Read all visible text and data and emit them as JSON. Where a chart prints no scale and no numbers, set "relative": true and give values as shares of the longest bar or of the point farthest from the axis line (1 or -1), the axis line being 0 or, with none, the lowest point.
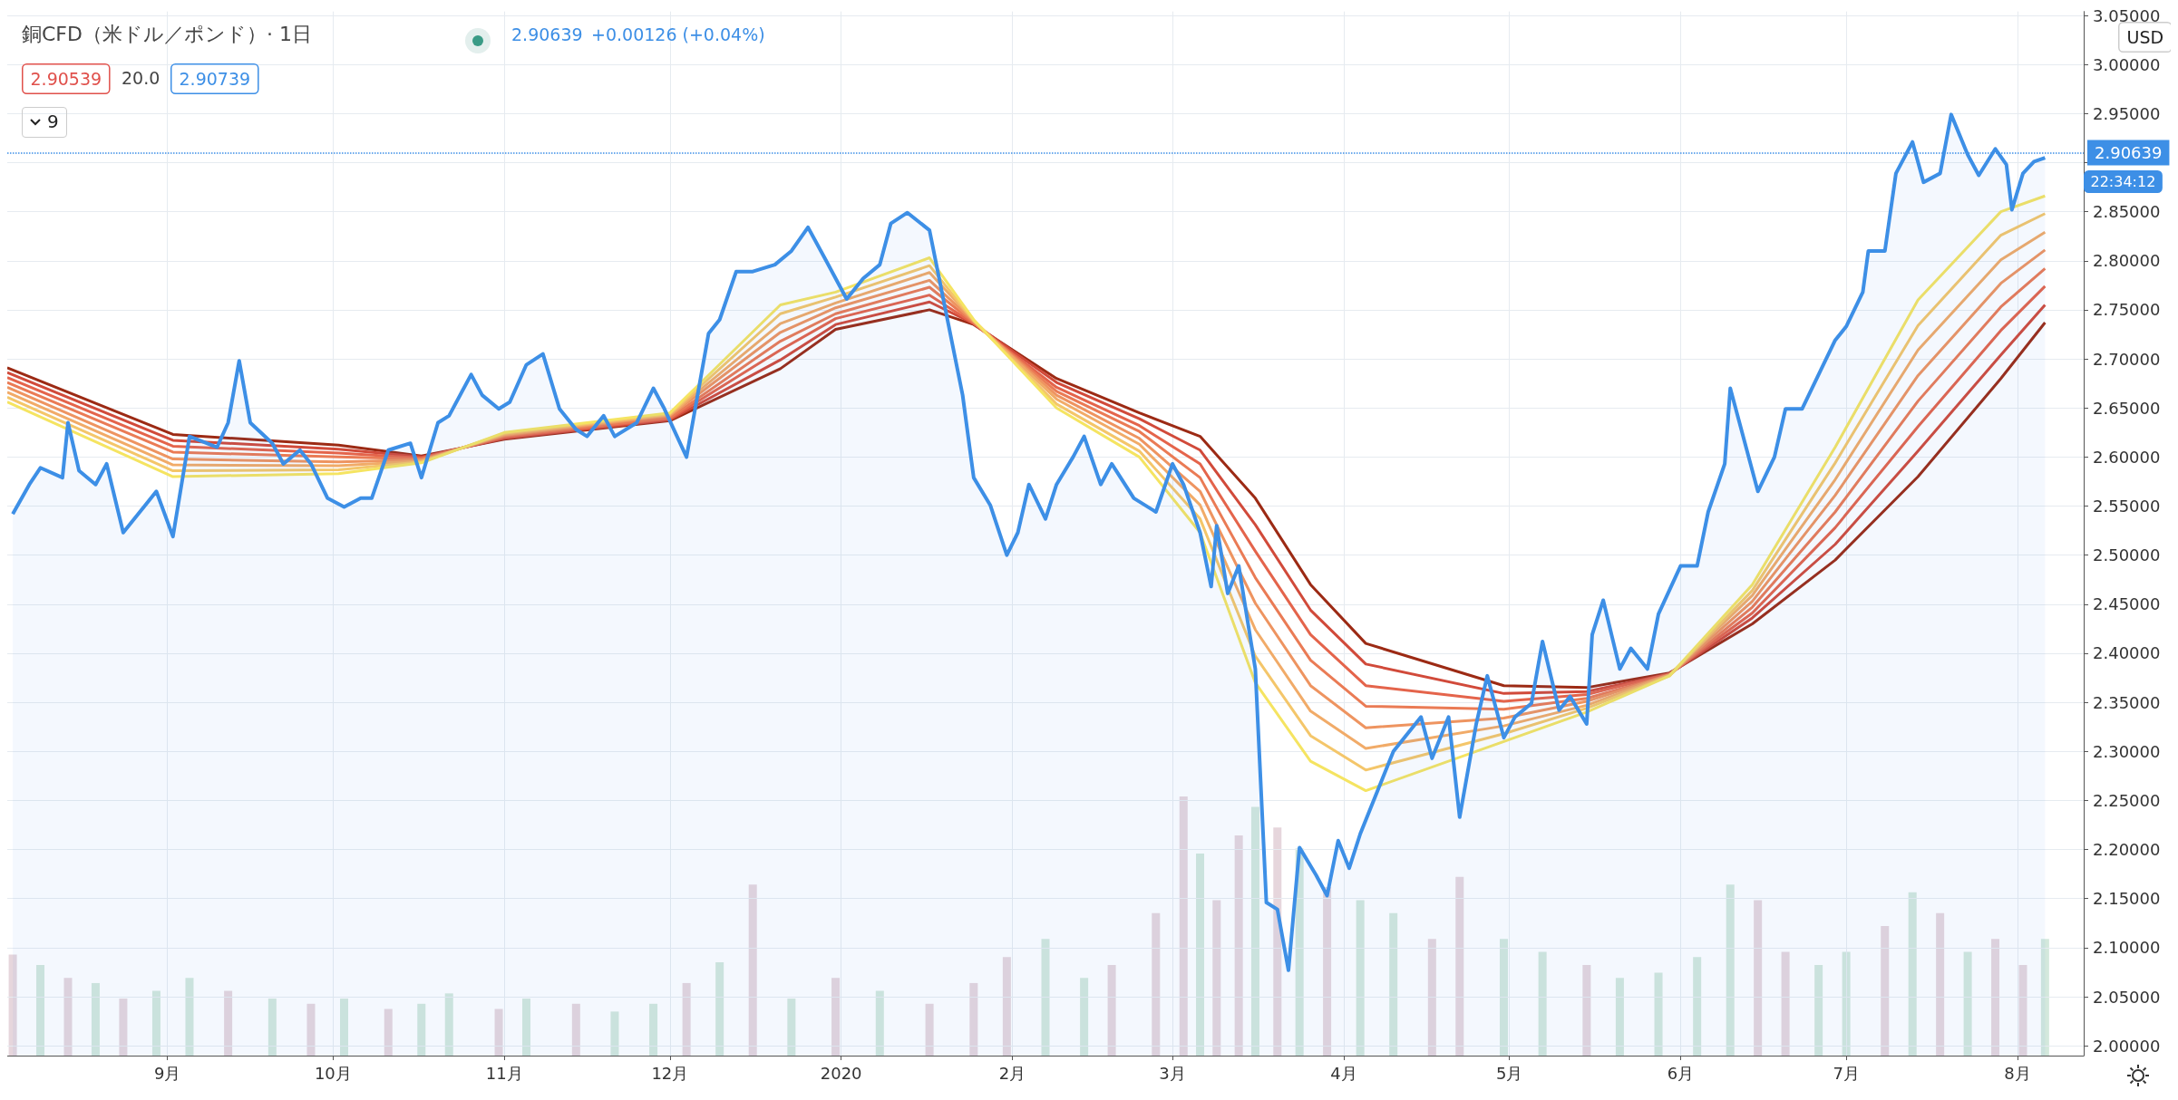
{
  "chart_data": [
    {
      "type": "line",
      "title": "銅CFD（米ドル／ポンド）· 1日",
      "annotations": [
        "2.90639",
        "+0.00126 (+0.04%)",
        "2.90539",
        "20.0",
        "2.90739",
        "9",
        "USD",
        "22:34:12"
      ],
      "xlim": [
        "2019-08-03",
        "2020-08-13"
      ],
      "xticks": [
        {
          "value": "2019-09-01",
          "label": "9月"
        },
        {
          "value": "2019-10-01",
          "label": "10月"
        },
        {
          "value": "2019-11-01",
          "label": "11月"
        },
        {
          "value": "2019-12-01",
          "label": "12月"
        },
        {
          "value": "2020-01-01",
          "label": "2020"
        },
        {
          "value": "2020-02-01",
          "label": "2月"
        },
        {
          "value": "2020-03-01",
          "label": "3月"
        },
        {
          "value": "2020-04-01",
          "label": "4月"
        },
        {
          "value": "2020-05-01",
          "label": "5月"
        },
        {
          "value": "2020-06-01",
          "label": "6月"
        },
        {
          "value": "2020-07-01",
          "label": "7月"
        },
        {
          "value": "2020-08-01",
          "label": "8月"
        }
      ],
      "ylim": [
        1.99,
        3.054
      ],
      "yticks": [
        {
          "value": 2.0,
          "label": "2.00000"
        },
        {
          "value": 2.05,
          "label": "2.05000"
        },
        {
          "value": 2.1,
          "label": "2.10000"
        },
        {
          "value": 2.15,
          "label": "2.15000"
        },
        {
          "value": 2.2,
          "label": "2.20000"
        },
        {
          "value": 2.25,
          "label": "2.25000"
        },
        {
          "value": 2.3,
          "label": "2.30000"
        },
        {
          "value": 2.35,
          "label": "2.35000"
        },
        {
          "value": 2.4,
          "label": "2.40000"
        },
        {
          "value": 2.45,
          "label": "2.45000"
        },
        {
          "value": 2.5,
          "label": "2.50000"
        },
        {
          "value": 2.55,
          "label": "2.55000"
        },
        {
          "value": 2.6,
          "label": "2.60000"
        },
        {
          "value": 2.65,
          "label": "2.65000"
        },
        {
          "value": 2.7,
          "label": "2.70000"
        },
        {
          "value": 2.75,
          "label": "2.75000"
        },
        {
          "value": 2.8,
          "label": "2.80000"
        },
        {
          "value": 2.85,
          "label": "2.85000"
        },
        {
          "value": 2.9,
          "label": null
        },
        {
          "value": 2.95,
          "label": "2.95000"
        },
        {
          "value": 3.0,
          "label": "3.00000"
        },
        {
          "value": 3.05,
          "label": "3.05000"
        }
      ],
      "grid": true,
      "ref_lines": [
        {
          "axis": "y",
          "value": 2.90639,
          "label": "2.90639",
          "color": "#3d8fe6",
          "line_style": "dotted"
        }
      ],
      "x": [
        "2019-08-03",
        "2019-09-02",
        "2019-10-02",
        "2019-10-17",
        "2019-11-01",
        "2019-12-01",
        "2019-12-21",
        "2019-12-31",
        "2020-01-17",
        "2020-01-25",
        "2020-02-09",
        "2020-02-24",
        "2020-03-06",
        "2020-03-16",
        "2020-03-26",
        "2020-04-05",
        "2020-04-30",
        "2020-05-15",
        "2020-05-30",
        "2020-06-14",
        "2020-06-29",
        "2020-07-14",
        "2020-07-29",
        "2020-08-06"
      ],
      "series": [
        {
          "type": "area",
          "color": "#3d8fe6",
          "x": [
            "2019-08-04",
            "2019-08-07",
            "2019-08-09",
            "2019-08-13",
            "2019-08-14",
            "2019-08-16",
            "2019-08-19",
            "2019-08-21",
            "2019-08-24",
            "2019-08-28",
            "2019-08-30",
            "2019-09-02",
            "2019-09-05",
            "2019-09-10",
            "2019-09-12",
            "2019-09-14",
            "2019-09-16",
            "2019-09-20",
            "2019-09-22",
            "2019-09-25",
            "2019-09-27",
            "2019-09-30",
            "2019-10-03",
            "2019-10-06",
            "2019-10-08",
            "2019-10-11",
            "2019-10-15",
            "2019-10-17",
            "2019-10-20",
            "2019-10-22",
            "2019-10-26",
            "2019-10-28",
            "2019-10-31",
            "2019-11-02",
            "2019-11-05",
            "2019-11-08",
            "2019-11-11",
            "2019-11-14",
            "2019-11-16",
            "2019-11-19",
            "2019-11-21",
            "2019-11-25",
            "2019-11-28",
            "2019-11-30",
            "2019-12-04",
            "2019-12-08",
            "2019-12-10",
            "2019-12-13",
            "2019-12-16",
            "2019-12-20",
            "2019-12-23",
            "2019-12-26",
            "2019-12-29",
            "2019-12-31",
            "2020-01-02",
            "2020-01-05",
            "2020-01-08",
            "2020-01-10",
            "2020-01-13",
            "2020-01-17",
            "2020-01-20",
            "2020-01-23",
            "2020-01-25",
            "2020-01-28",
            "2020-01-31",
            "2020-02-02",
            "2020-02-04",
            "2020-02-07",
            "2020-02-09",
            "2020-02-12",
            "2020-02-14",
            "2020-02-17",
            "2020-02-19",
            "2020-02-23",
            "2020-02-27",
            "2020-03-01",
            "2020-03-03",
            "2020-03-06",
            "2020-03-08",
            "2020-03-09",
            "2020-03-11",
            "2020-03-13",
            "2020-03-16",
            "2020-03-18",
            "2020-03-20",
            "2020-03-22",
            "2020-03-24",
            "2020-03-27",
            "2020-03-29",
            "2020-03-31",
            "2020-04-02",
            "2020-04-04",
            "2020-04-07",
            "2020-04-10",
            "2020-04-12",
            "2020-04-15",
            "2020-04-17",
            "2020-04-20",
            "2020-04-22",
            "2020-04-25",
            "2020-04-27",
            "2020-04-30",
            "2020-05-02",
            "2020-05-05",
            "2020-05-07",
            "2020-05-10",
            "2020-05-12",
            "2020-05-15",
            "2020-05-16",
            "2020-05-18",
            "2020-05-21",
            "2020-05-23",
            "2020-05-26",
            "2020-05-28",
            "2020-06-01",
            "2020-06-04",
            "2020-06-06",
            "2020-06-09",
            "2020-06-10",
            "2020-06-13",
            "2020-06-15",
            "2020-06-18",
            "2020-06-20",
            "2020-06-23",
            "2020-06-26",
            "2020-06-29",
            "2020-07-01",
            "2020-07-04",
            "2020-07-05",
            "2020-07-08",
            "2020-07-10",
            "2020-07-13",
            "2020-07-15",
            "2020-07-18",
            "2020-07-20",
            "2020-07-23",
            "2020-07-25",
            "2020-07-28",
            "2020-07-30",
            "2020-07-31",
            "2020-08-02",
            "2020-08-04",
            "2020-08-06"
          ],
          "values": [
            2.542,
            2.572,
            2.589,
            2.579,
            2.635,
            2.586,
            2.572,
            2.593,
            2.523,
            2.551,
            2.565,
            2.519,
            2.621,
            2.61,
            2.635,
            2.698,
            2.635,
            2.614,
            2.593,
            2.607,
            2.593,
            2.558,
            2.549,
            2.558,
            2.558,
            2.607,
            2.614,
            2.579,
            2.635,
            2.642,
            2.684,
            2.663,
            2.649,
            2.656,
            2.694,
            2.705,
            2.649,
            2.628,
            2.621,
            2.642,
            2.621,
            2.635,
            2.67,
            2.649,
            2.6,
            2.726,
            2.74,
            2.789,
            2.789,
            2.796,
            2.81,
            2.834,
            2.803,
            2.782,
            2.761,
            2.782,
            2.796,
            2.838,
            2.849,
            2.831,
            2.747,
            2.663,
            2.579,
            2.551,
            2.5,
            2.523,
            2.572,
            2.537,
            2.572,
            2.6,
            2.621,
            2.572,
            2.593,
            2.558,
            2.544,
            2.593,
            2.572,
            2.523,
            2.468,
            2.53,
            2.461,
            2.489,
            2.384,
            2.146,
            2.139,
            2.077,
            2.202,
            2.174,
            2.153,
            2.209,
            2.181,
            2.216,
            2.258,
            2.3,
            2.314,
            2.335,
            2.293,
            2.335,
            2.233,
            2.328,
            2.377,
            2.314,
            2.335,
            2.349,
            2.412,
            2.342,
            2.356,
            2.328,
            2.419,
            2.454,
            2.384,
            2.405,
            2.384,
            2.44,
            2.489,
            2.489,
            2.544,
            2.593,
            2.67,
            2.607,
            2.565,
            2.6,
            2.649,
            2.649,
            2.684,
            2.719,
            2.733,
            2.768,
            2.81,
            2.81,
            2.889,
            2.921,
            2.88,
            2.889,
            2.949,
            2.908,
            2.887,
            2.914,
            2.898,
            2.852,
            2.889,
            2.901,
            2.905
          ]
        },
        {
          "color": "#f5e461",
          "values": [
            2.656,
            2.58,
            2.583,
            2.594,
            2.625,
            2.645,
            2.755,
            2.768,
            2.803,
            2.74,
            2.65,
            2.6,
            2.523,
            2.37,
            2.29,
            2.26,
            2.31,
            2.34,
            2.377,
            2.47,
            2.61,
            2.76,
            2.85,
            2.866
          ]
        },
        {
          "color": "#f4c66a",
          "values": [
            2.661,
            2.586,
            2.587,
            2.595,
            2.624,
            2.644,
            2.746,
            2.763,
            2.795,
            2.739,
            2.654,
            2.606,
            2.537,
            2.397,
            2.316,
            2.281,
            2.318,
            2.344,
            2.377,
            2.464,
            2.594,
            2.734,
            2.826,
            2.848
          ]
        },
        {
          "color": "#f1ab68",
          "values": [
            2.666,
            2.592,
            2.591,
            2.596,
            2.623,
            2.643,
            2.736,
            2.757,
            2.788,
            2.739,
            2.659,
            2.613,
            2.551,
            2.424,
            2.341,
            2.303,
            2.326,
            2.347,
            2.378,
            2.459,
            2.577,
            2.709,
            2.801,
            2.829
          ]
        },
        {
          "color": "#ee9460",
          "values": [
            2.671,
            2.598,
            2.595,
            2.597,
            2.622,
            2.642,
            2.727,
            2.752,
            2.78,
            2.738,
            2.663,
            2.619,
            2.565,
            2.451,
            2.367,
            2.324,
            2.334,
            2.351,
            2.378,
            2.453,
            2.561,
            2.683,
            2.777,
            2.811
          ]
        },
        {
          "color": "#ea7b55",
          "values": [
            2.676,
            2.605,
            2.6,
            2.598,
            2.621,
            2.64,
            2.718,
            2.746,
            2.773,
            2.737,
            2.667,
            2.626,
            2.579,
            2.477,
            2.393,
            2.346,
            2.343,
            2.354,
            2.378,
            2.447,
            2.544,
            2.657,
            2.753,
            2.792
          ]
        },
        {
          "color": "#e4644b",
          "values": [
            2.681,
            2.611,
            2.604,
            2.599,
            2.62,
            2.639,
            2.709,
            2.741,
            2.765,
            2.736,
            2.671,
            2.632,
            2.593,
            2.504,
            2.419,
            2.367,
            2.351,
            2.358,
            2.379,
            2.441,
            2.528,
            2.631,
            2.729,
            2.774
          ]
        },
        {
          "color": "#d14a3a",
          "values": [
            2.686,
            2.617,
            2.608,
            2.6,
            2.619,
            2.638,
            2.699,
            2.735,
            2.758,
            2.736,
            2.676,
            2.639,
            2.607,
            2.531,
            2.444,
            2.389,
            2.359,
            2.361,
            2.379,
            2.436,
            2.511,
            2.606,
            2.704,
            2.755
          ]
        },
        {
          "color": "#9c2a14",
          "values": [
            2.691,
            2.623,
            2.612,
            2.601,
            2.618,
            2.637,
            2.69,
            2.73,
            2.75,
            2.735,
            2.68,
            2.645,
            2.621,
            2.558,
            2.47,
            2.41,
            2.367,
            2.365,
            2.38,
            2.43,
            2.495,
            2.58,
            2.68,
            2.737
          ]
        }
      ]
    },
    {
      "type": "bar",
      "relative": true,
      "xlim": [
        "2019-08-03",
        "2020-08-13"
      ],
      "x": [
        "2019-08-04",
        "2019-08-09",
        "2019-08-14",
        "2019-08-19",
        "2019-08-24",
        "2019-08-30",
        "2019-09-05",
        "2019-09-12",
        "2019-09-20",
        "2019-09-27",
        "2019-10-03",
        "2019-10-11",
        "2019-10-17",
        "2019-10-22",
        "2019-10-31",
        "2019-11-05",
        "2019-11-14",
        "2019-11-21",
        "2019-11-28",
        "2019-12-04",
        "2019-12-10",
        "2019-12-16",
        "2019-12-23",
        "2019-12-31",
        "2020-01-08",
        "2020-01-17",
        "2020-01-25",
        "2020-01-31",
        "2020-02-07",
        "2020-02-14",
        "2020-02-19",
        "2020-02-27",
        "2020-03-03",
        "2020-03-06",
        "2020-03-09",
        "2020-03-13",
        "2020-03-16",
        "2020-03-20",
        "2020-03-24",
        "2020-03-29",
        "2020-04-04",
        "2020-04-10",
        "2020-04-17",
        "2020-04-22",
        "2020-04-30",
        "2020-05-07",
        "2020-05-15",
        "2020-05-21",
        "2020-05-28",
        "2020-06-04",
        "2020-06-10",
        "2020-06-15",
        "2020-06-20",
        "2020-06-26",
        "2020-07-01",
        "2020-07-08",
        "2020-07-13",
        "2020-07-18",
        "2020-07-23",
        "2020-07-28",
        "2020-08-02",
        "2020-08-06"
      ],
      "values": [
        0.39,
        0.35,
        0.3,
        0.28,
        0.22,
        0.25,
        0.3,
        0.25,
        0.22,
        0.2,
        0.22,
        0.18,
        0.2,
        0.24,
        0.18,
        0.22,
        0.2,
        0.17,
        0.2,
        0.28,
        0.36,
        0.66,
        0.22,
        0.3,
        0.25,
        0.2,
        0.28,
        0.38,
        0.45,
        0.3,
        0.35,
        0.55,
        1,
        0.78,
        0.6,
        0.85,
        0.96,
        0.88,
        0.8,
        0.65,
        0.6,
        0.55,
        0.45,
        0.69,
        0.45,
        0.4,
        0.35,
        0.3,
        0.32,
        0.38,
        0.66,
        0.6,
        0.4,
        0.35,
        0.4,
        0.5,
        0.63,
        0.55,
        0.4,
        0.45,
        0.35,
        0.45
      ],
      "colors": [
        "#e6d6dc",
        "#d3e8dc",
        "#e6d6dc",
        "#d3e8dc",
        "#e6d6dc",
        "#d3e8dc",
        "#d3e8dc",
        "#e6d6dc",
        "#d3e8dc",
        "#e6d6dc",
        "#d3e8dc",
        "#e6d6dc",
        "#d3e8dc",
        "#d3e8dc",
        "#e6d6dc",
        "#d3e8dc",
        "#e6d6dc",
        "#d3e8dc",
        "#d3e8dc",
        "#e6d6dc",
        "#d3e8dc",
        "#e6d6dc",
        "#d3e8dc",
        "#e6d6dc",
        "#d3e8dc",
        "#e6d6dc",
        "#e6d6dc",
        "#e6d6dc",
        "#d3e8dc",
        "#d3e8dc",
        "#e6d6dc",
        "#e6d6dc",
        "#e6d6dc",
        "#d3e8dc",
        "#e6d6dc",
        "#e6d6dc",
        "#d3e8dc",
        "#e6d6dc",
        "#d3e8dc",
        "#e6d6dc",
        "#d3e8dc",
        "#d3e8dc",
        "#e6d6dc",
        "#e6d6dc",
        "#d3e8dc",
        "#d3e8dc",
        "#e6d6dc",
        "#d3e8dc",
        "#d3e8dc",
        "#d3e8dc",
        "#d3e8dc",
        "#e6d6dc",
        "#e6d6dc",
        "#d3e8dc",
        "#d3e8dc",
        "#e6d6dc",
        "#d3e8dc",
        "#e6d6dc",
        "#d3e8dc",
        "#e6d6dc",
        "#e6d6dc",
        "#d3e8dc"
      ]
    }
  ]
}
